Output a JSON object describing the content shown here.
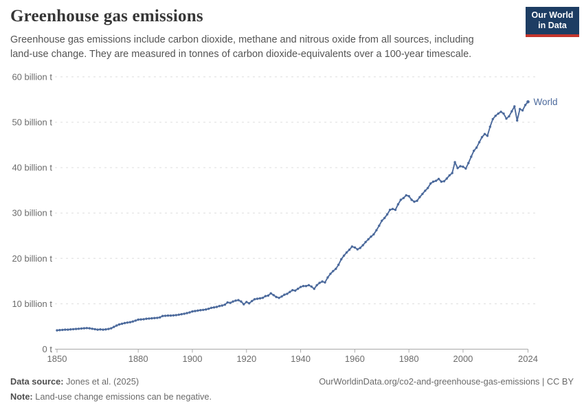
{
  "header": {
    "title": "Greenhouse gas emissions",
    "subtitle": "Greenhouse gas emissions include carbon dioxide, methane and nitrous oxide from all sources, including land-use change. They are measured in tonnes of carbon dioxide-equivalents over a 100-year timescale.",
    "logo": {
      "line1": "Our World",
      "line2": "in Data",
      "bg_color": "#1d3d63",
      "accent_color": "#c4352c"
    }
  },
  "chart_data": {
    "type": "line",
    "title": "Greenhouse gas emissions",
    "xlabel": "",
    "ylabel": "",
    "unit": "tonnes of CO2-equivalents",
    "xlim": [
      1850,
      2024
    ],
    "ylim": [
      0,
      60
    ],
    "grid": "horizontal dashed",
    "legend_position": "end-of-line label",
    "x_ticks": [
      1850,
      1880,
      1900,
      1920,
      1940,
      1960,
      1980,
      2000,
      2024
    ],
    "y_ticks": [
      {
        "value": 0,
        "label": "0 t"
      },
      {
        "value": 10,
        "label": "10 billion t"
      },
      {
        "value": 20,
        "label": "20 billion t"
      },
      {
        "value": 30,
        "label": "30 billion t"
      },
      {
        "value": 40,
        "label": "40 billion t"
      },
      {
        "value": 50,
        "label": "50 billion t"
      },
      {
        "value": 60,
        "label": "60 billion t"
      }
    ],
    "series": [
      {
        "name": "World",
        "color": "#4C6A9C",
        "marker": "dot",
        "years": [
          1850,
          1851,
          1852,
          1853,
          1854,
          1855,
          1856,
          1857,
          1858,
          1859,
          1860,
          1861,
          1862,
          1863,
          1864,
          1865,
          1866,
          1867,
          1868,
          1869,
          1870,
          1871,
          1872,
          1873,
          1874,
          1875,
          1876,
          1877,
          1878,
          1879,
          1880,
          1881,
          1882,
          1883,
          1884,
          1885,
          1886,
          1887,
          1888,
          1889,
          1890,
          1891,
          1892,
          1893,
          1894,
          1895,
          1896,
          1897,
          1898,
          1899,
          1900,
          1901,
          1902,
          1903,
          1904,
          1905,
          1906,
          1907,
          1908,
          1909,
          1910,
          1911,
          1912,
          1913,
          1914,
          1915,
          1916,
          1917,
          1918,
          1919,
          1920,
          1921,
          1922,
          1923,
          1924,
          1925,
          1926,
          1927,
          1928,
          1929,
          1930,
          1931,
          1932,
          1933,
          1934,
          1935,
          1936,
          1937,
          1938,
          1939,
          1940,
          1941,
          1942,
          1943,
          1944,
          1945,
          1946,
          1947,
          1948,
          1949,
          1950,
          1951,
          1952,
          1953,
          1954,
          1955,
          1956,
          1957,
          1958,
          1959,
          1960,
          1961,
          1962,
          1963,
          1964,
          1965,
          1966,
          1967,
          1968,
          1969,
          1970,
          1971,
          1972,
          1973,
          1974,
          1975,
          1976,
          1977,
          1978,
          1979,
          1980,
          1981,
          1982,
          1983,
          1984,
          1985,
          1986,
          1987,
          1988,
          1989,
          1990,
          1991,
          1992,
          1993,
          1994,
          1995,
          1996,
          1997,
          1998,
          1999,
          2000,
          2001,
          2002,
          2003,
          2004,
          2005,
          2006,
          2007,
          2008,
          2009,
          2010,
          2011,
          2012,
          2013,
          2014,
          2015,
          2016,
          2017,
          2018,
          2019,
          2020,
          2021,
          2022,
          2023,
          2024
        ],
        "values": [
          4.15,
          4.2,
          4.25,
          4.3,
          4.3,
          4.35,
          4.4,
          4.45,
          4.5,
          4.55,
          4.6,
          4.65,
          4.6,
          4.5,
          4.4,
          4.3,
          4.35,
          4.3,
          4.35,
          4.45,
          4.6,
          4.9,
          5.2,
          5.45,
          5.6,
          5.75,
          5.85,
          5.95,
          6.1,
          6.3,
          6.5,
          6.55,
          6.6,
          6.7,
          6.75,
          6.8,
          6.85,
          6.9,
          7.0,
          7.3,
          7.35,
          7.4,
          7.4,
          7.45,
          7.5,
          7.6,
          7.7,
          7.8,
          7.95,
          8.1,
          8.3,
          8.4,
          8.5,
          8.6,
          8.65,
          8.75,
          8.9,
          9.1,
          9.2,
          9.3,
          9.5,
          9.6,
          9.8,
          10.3,
          10.2,
          10.5,
          10.7,
          10.8,
          10.5,
          9.9,
          10.4,
          10.1,
          10.6,
          11.0,
          11.1,
          11.2,
          11.3,
          11.7,
          11.8,
          12.3,
          11.9,
          11.5,
          11.3,
          11.6,
          12.0,
          12.2,
          12.6,
          13.0,
          12.9,
          13.3,
          13.7,
          13.9,
          13.9,
          14.1,
          13.8,
          13.3,
          14.1,
          14.6,
          14.9,
          14.7,
          15.8,
          16.6,
          17.2,
          17.7,
          18.6,
          19.8,
          20.6,
          21.3,
          21.9,
          22.6,
          22.4,
          22.0,
          22.3,
          22.9,
          23.6,
          24.2,
          24.8,
          25.3,
          26.2,
          27.2,
          28.3,
          28.9,
          29.7,
          30.7,
          30.9,
          30.7,
          31.9,
          32.9,
          33.3,
          33.9,
          33.7,
          32.9,
          32.5,
          32.7,
          33.5,
          34.2,
          34.9,
          35.5,
          36.5,
          36.9,
          37.1,
          37.5,
          36.9,
          37.0,
          37.6,
          38.3,
          38.8,
          41.2,
          39.9,
          40.3,
          40.2,
          39.8,
          41.0,
          42.4,
          43.7,
          44.4,
          45.6,
          46.7,
          47.4,
          47.0,
          49.0,
          50.7,
          51.4,
          51.9,
          52.3,
          51.9,
          50.8,
          51.3,
          52.4,
          53.5,
          50.4,
          52.9,
          52.6,
          53.8,
          54.5
        ]
      }
    ]
  },
  "footer": {
    "source_label": "Data source:",
    "source_value": "Jones et al. (2025)",
    "note_label": "Note:",
    "note_value": "Land-use change emissions can be negative.",
    "url_license": "OurWorldinData.org/co2-and-greenhouse-gas-emissions | CC BY"
  }
}
